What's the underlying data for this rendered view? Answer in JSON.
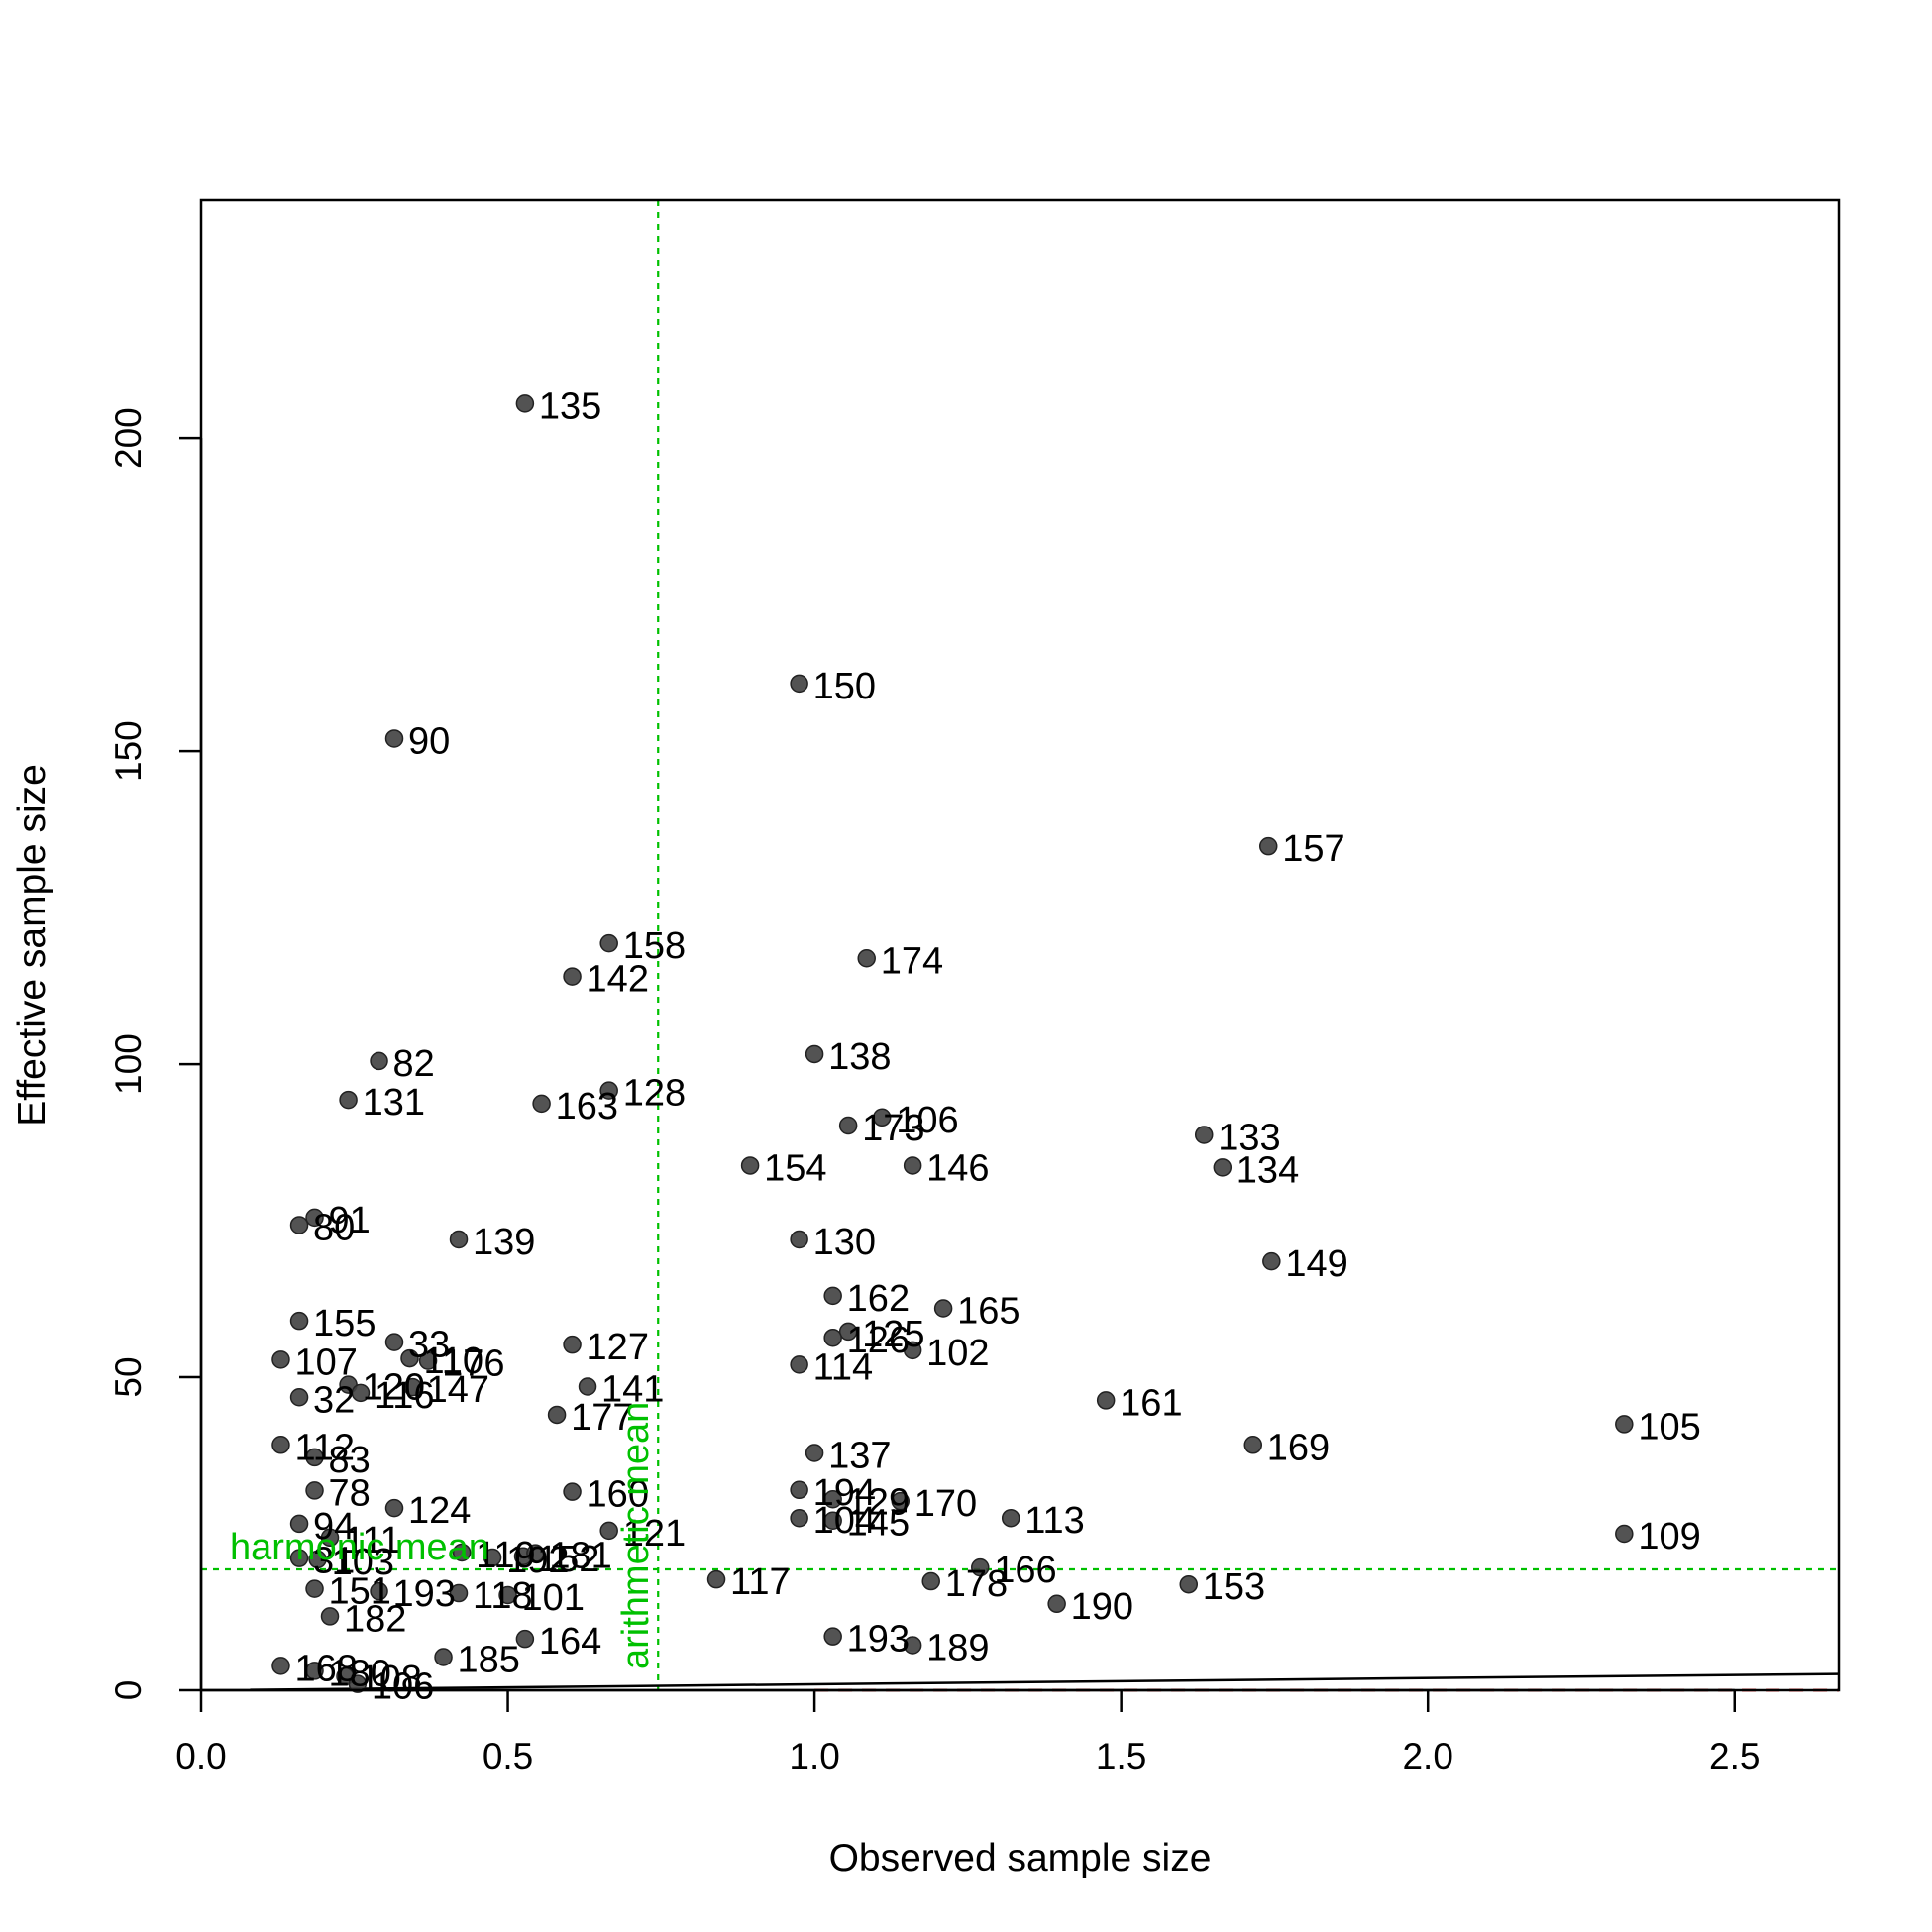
{
  "chart_data": {
    "type": "scatter",
    "xlabel": "Observed sample size",
    "ylabel": "Effective sample size",
    "xlim": [
      0,
      2.67
    ],
    "ylim": [
      0,
      238
    ],
    "x_ticks": [
      "0.0",
      "0.5",
      "1.0",
      "1.5",
      "2.0",
      "2.5"
    ],
    "x_tick_values": [
      0,
      0.5,
      1.0,
      1.5,
      2.0,
      2.5
    ],
    "y_ticks": [
      "0",
      "50",
      "100",
      "150",
      "200"
    ],
    "y_tick_values": [
      0,
      50,
      100,
      150,
      200
    ],
    "grid": false,
    "legend": "none",
    "colors": {
      "points": "#404040",
      "reference": "#00c000",
      "red_dashed": "#e03030",
      "axis": "#000000"
    },
    "reference_lines": [
      {
        "orientation": "vertical",
        "value": 0.745,
        "label": "arithmetic mean"
      },
      {
        "orientation": "horizontal",
        "value": 19.3,
        "label": "harmonic mean"
      }
    ],
    "lines": [
      {
        "style": "solid",
        "color": "#000000",
        "points": [
          [
            0.08,
            0.05
          ],
          [
            2.67,
            2.6
          ]
        ]
      },
      {
        "style": "dashed",
        "color": "#e03030",
        "points": [
          [
            1.0,
            0.0
          ],
          [
            2.67,
            0.0
          ]
        ]
      }
    ],
    "points": [
      {
        "id": "135",
        "x": 0.528,
        "y": 205.5
      },
      {
        "id": "150",
        "x": 0.975,
        "y": 160.8
      },
      {
        "id": "90",
        "x": 0.315,
        "y": 152.0
      },
      {
        "id": "157",
        "x": 1.74,
        "y": 134.8
      },
      {
        "id": "158",
        "x": 0.665,
        "y": 119.3
      },
      {
        "id": "174",
        "x": 1.085,
        "y": 116.9
      },
      {
        "id": "142",
        "x": 0.605,
        "y": 114.0
      },
      {
        "id": "138",
        "x": 1.0,
        "y": 101.6
      },
      {
        "id": "82",
        "x": 0.29,
        "y": 100.5
      },
      {
        "id": "128",
        "x": 0.665,
        "y": 95.8
      },
      {
        "id": "131",
        "x": 0.24,
        "y": 94.3
      },
      {
        "id": "163",
        "x": 0.555,
        "y": 93.7
      },
      {
        "id": "106",
        "x": 1.11,
        "y": 91.5
      },
      {
        "id": "173",
        "x": 1.055,
        "y": 90.2
      },
      {
        "id": "133",
        "x": 1.635,
        "y": 88.7
      },
      {
        "id": "154",
        "x": 0.895,
        "y": 83.8
      },
      {
        "id": "146",
        "x": 1.16,
        "y": 83.8
      },
      {
        "id": "134",
        "x": 1.665,
        "y": 83.5
      },
      {
        "id": "91",
        "x": 0.185,
        "y": 75.5
      },
      {
        "id": "80",
        "x": 0.16,
        "y": 74.3
      },
      {
        "id": "139",
        "x": 0.42,
        "y": 72.0
      },
      {
        "id": "130",
        "x": 0.975,
        "y": 72.0
      },
      {
        "id": "149",
        "x": 1.745,
        "y": 68.5
      },
      {
        "id": "162",
        "x": 1.03,
        "y": 63.0
      },
      {
        "id": "165",
        "x": 1.21,
        "y": 61.0
      },
      {
        "id": "155",
        "x": 0.16,
        "y": 59.0
      },
      {
        "id": "125",
        "x": 1.055,
        "y": 57.3
      },
      {
        "id": "126",
        "x": 1.03,
        "y": 56.3
      },
      {
        "id": "33",
        "x": 0.315,
        "y": 55.6
      },
      {
        "id": "127",
        "x": 0.605,
        "y": 55.2
      },
      {
        "id": "102",
        "x": 1.16,
        "y": 54.3
      },
      {
        "id": "110",
        "x": 0.34,
        "y": 53.0
      },
      {
        "id": "107",
        "x": 0.13,
        "y": 52.8
      },
      {
        "id": "176",
        "x": 0.37,
        "y": 52.6
      },
      {
        "id": "114",
        "x": 0.975,
        "y": 52.0
      },
      {
        "id": "120",
        "x": 0.24,
        "y": 48.8
      },
      {
        "id": "141",
        "x": 0.63,
        "y": 48.5
      },
      {
        "id": "147",
        "x": 0.345,
        "y": 48.4
      },
      {
        "id": "116",
        "x": 0.26,
        "y": 47.5
      },
      {
        "id": "32",
        "x": 0.16,
        "y": 46.8
      },
      {
        "id": "161",
        "x": 1.475,
        "y": 46.3
      },
      {
        "id": "177",
        "x": 0.58,
        "y": 44.0
      },
      {
        "id": "105",
        "x": 2.32,
        "y": 42.5
      },
      {
        "id": "112",
        "x": 0.13,
        "y": 39.2
      },
      {
        "id": "169",
        "x": 1.715,
        "y": 39.2
      },
      {
        "id": "137",
        "x": 1.0,
        "y": 37.9
      },
      {
        "id": "83",
        "x": 0.185,
        "y": 37.2
      },
      {
        "id": "78",
        "x": 0.185,
        "y": 31.9
      },
      {
        "id": "194",
        "x": 0.975,
        "y": 32.0
      },
      {
        "id": "160",
        "x": 0.605,
        "y": 31.7
      },
      {
        "id": "129",
        "x": 1.03,
        "y": 30.5
      },
      {
        "id": "170",
        "x": 1.14,
        "y": 30.2
      },
      {
        "id": "124",
        "x": 0.315,
        "y": 29.1
      },
      {
        "id": "113",
        "x": 1.32,
        "y": 27.5
      },
      {
        "id": "104",
        "x": 0.975,
        "y": 27.5
      },
      {
        "id": "145",
        "x": 1.03,
        "y": 27.1
      },
      {
        "id": "94",
        "x": 0.16,
        "y": 26.6
      },
      {
        "id": "121",
        "x": 0.665,
        "y": 25.5
      },
      {
        "id": "109",
        "x": 2.32,
        "y": 25.0
      },
      {
        "id": "111",
        "x": 0.21,
        "y": 24.4
      },
      {
        "id": "31",
        "x": 0.16,
        "y": 21.1
      },
      {
        "id": "103",
        "x": 0.19,
        "y": 20.9
      },
      {
        "id": "119",
        "x": 0.425,
        "y": 22.0
      },
      {
        "id": "192",
        "x": 0.475,
        "y": 21.2
      },
      {
        "id": "152",
        "x": 0.525,
        "y": 21.4
      },
      {
        "id": "181",
        "x": 0.545,
        "y": 21.9
      },
      {
        "id": "166",
        "x": 1.27,
        "y": 19.6
      },
      {
        "id": "117",
        "x": 0.84,
        "y": 17.7
      },
      {
        "id": "178",
        "x": 1.19,
        "y": 17.4
      },
      {
        "id": "153",
        "x": 1.61,
        "y": 16.9
      },
      {
        "id": "151",
        "x": 0.185,
        "y": 16.2
      },
      {
        "id": "193",
        "x": 0.29,
        "y": 15.8
      },
      {
        "id": "118",
        "x": 0.42,
        "y": 15.5
      },
      {
        "id": "101",
        "x": 0.5,
        "y": 15.2
      },
      {
        "id": "190",
        "x": 1.395,
        "y": 13.8
      },
      {
        "id": "182",
        "x": 0.21,
        "y": 11.8
      },
      {
        "id": "193",
        "x": 1.03,
        "y": 8.6
      },
      {
        "id": "164",
        "x": 0.528,
        "y": 8.2
      },
      {
        "id": "189",
        "x": 1.16,
        "y": 7.2
      },
      {
        "id": "185",
        "x": 0.395,
        "y": 5.3
      },
      {
        "id": "168",
        "x": 0.13,
        "y": 3.9
      },
      {
        "id": "180",
        "x": 0.185,
        "y": 3.1
      },
      {
        "id": "108",
        "x": 0.235,
        "y": 2.2
      },
      {
        "id": "106",
        "x": 0.255,
        "y": 1.0
      }
    ]
  }
}
